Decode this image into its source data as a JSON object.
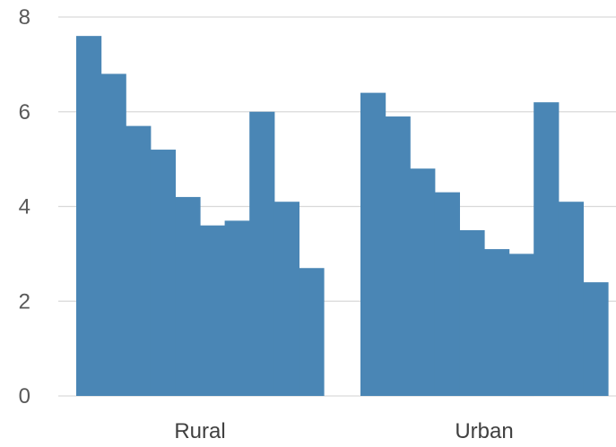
{
  "chart_data": {
    "type": "bar",
    "ylim": [
      0,
      8
    ],
    "y_ticks": [
      "0",
      "2",
      "4",
      "6",
      "8"
    ],
    "grid": "horizontal",
    "bar_color": "#4a86b5",
    "categories": [
      "Rural",
      "Urban"
    ],
    "groups": [
      {
        "category": "Rural",
        "values": [
          7.6,
          6.8,
          5.7,
          5.2,
          4.2,
          3.6,
          3.7,
          6.0,
          4.1,
          2.7
        ]
      },
      {
        "category": "Urban",
        "values": [
          6.4,
          5.9,
          4.8,
          4.3,
          3.5,
          3.1,
          3.0,
          6.2,
          4.1,
          2.4
        ]
      }
    ],
    "title": "",
    "xlabel": "",
    "ylabel": ""
  }
}
